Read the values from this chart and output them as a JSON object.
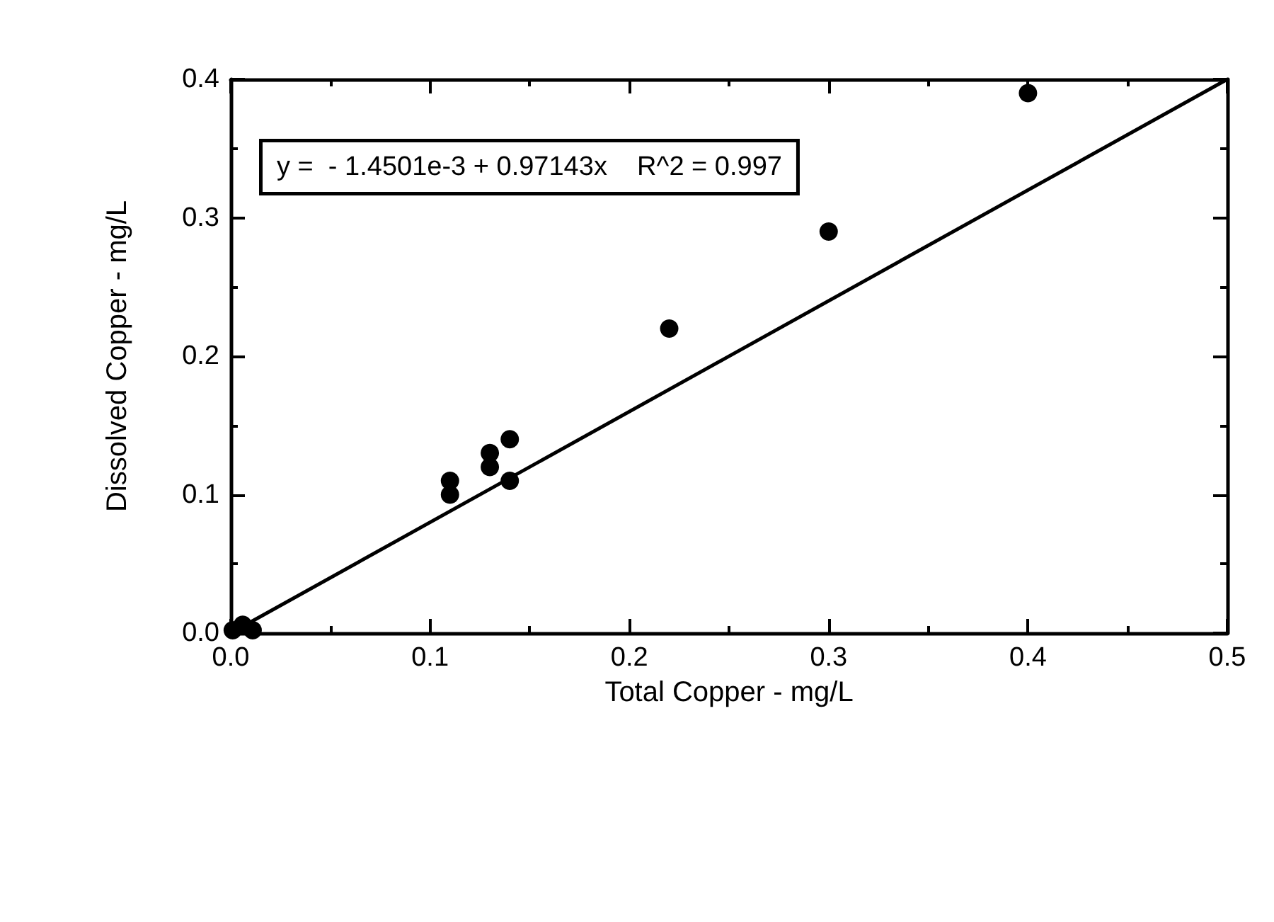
{
  "chart_data": {
    "type": "scatter",
    "xlabel": "Total Copper - mg/L",
    "ylabel": "Dissolved Copper - mg/L",
    "annotations": [
      "y =  - 1.4501e-3 + 0.97143x    R^2 = 0.997"
    ],
    "x": [
      0.001,
      0.006,
      0.011,
      0.11,
      0.11,
      0.13,
      0.13,
      0.14,
      0.14,
      0.22,
      0.3,
      0.4
    ],
    "series": [
      {
        "color": "#000000",
        "marker": "circle",
        "values": [
          0.002,
          0.006,
          0.002,
          0.11,
          0.1,
          0.13,
          0.12,
          0.14,
          0.11,
          0.22,
          0.29,
          0.39
        ]
      },
      {
        "type": "line",
        "color": "#000000",
        "marker": "none",
        "x": [
          0,
          0.5
        ],
        "values": [
          0,
          0.4
        ]
      }
    ],
    "line_style": "solid",
    "xlim": [
      0,
      0.5
    ],
    "xticks": [
      {
        "value": 0,
        "label": "0.0"
      },
      0.1,
      0.2,
      0.3,
      0.4,
      0.5
    ],
    "ylim": [
      0,
      0.4
    ],
    "yticks": [
      {
        "value": 0,
        "label": "0.0"
      },
      0.1,
      0.2,
      0.3,
      0.4
    ]
  }
}
